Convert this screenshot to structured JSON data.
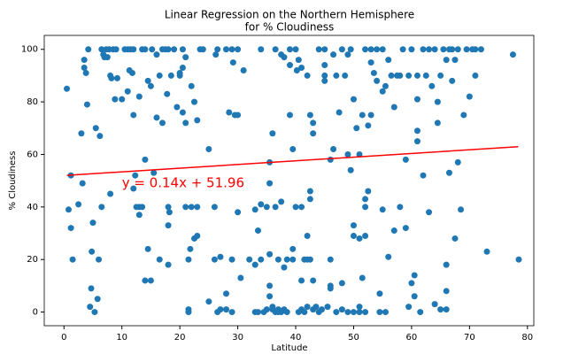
{
  "chart_data": {
    "type": "scatter",
    "title": [
      "Linear Regression on the Northern Hemisphere",
      "for % Cloudiness"
    ],
    "x_label": "Latitude",
    "y_label": "% Cloudiness",
    "color": "#1f77b4",
    "xlim": [
      -3.4,
      81.1
    ],
    "ylim": [
      -5.2,
      105.3
    ],
    "xticks": [
      0,
      10,
      20,
      30,
      40,
      50,
      60,
      70,
      80
    ],
    "yticks": [
      0,
      20,
      40,
      60,
      80,
      100
    ],
    "annotation": {
      "text": "y = 0.14x + 51.96",
      "x": 10,
      "y": 49,
      "color": "red"
    },
    "fit_line": {
      "x": [
        0.5,
        78.4
      ],
      "values": [
        52.03,
        62.94
      ],
      "color": "red"
    },
    "x": [
      0.5,
      0.8,
      1.2,
      1.5,
      1.2,
      2.5,
      3,
      3.2,
      3.5,
      3.8,
      3.5,
      4,
      4.2,
      4.5,
      4.7,
      4.8,
      5,
      5.3,
      5.5,
      5.8,
      6,
      6.2,
      6.5,
      6.5,
      6.8,
      7,
      7.3,
      7.5,
      7.8,
      8,
      8,
      8.2,
      8.5,
      8.8,
      9,
      9.2,
      10,
      10.5,
      11,
      11,
      11.3,
      11.5,
      11.8,
      12,
      12,
      12,
      12.3,
      12.5,
      13,
      13,
      13,
      13.5,
      13.5,
      14,
      14,
      14,
      14.5,
      14.5,
      15,
      15,
      15.2,
      15.5,
      16,
      16,
      16.5,
      16.5,
      17,
      17,
      17.5,
      17.8,
      18,
      18,
      18,
      18.2,
      18.5,
      18,
      19,
      19.5,
      20,
      20,
      20.5,
      20.5,
      20.5,
      21,
      21,
      21,
      21.5,
      21.5,
      21.8,
      21.5,
      22,
      22,
      22.5,
      22.5,
      23,
      23,
      23,
      23.5,
      24,
      25,
      25,
      26,
      26,
      26.2,
      26.5,
      26.5,
      27,
      27,
      28,
      28,
      28,
      28.5,
      29,
      29,
      29,
      29.2,
      29.5,
      30,
      30,
      30,
      30.5,
      31,
      32,
      33,
      33,
      33,
      33.5,
      33.5,
      34,
      34,
      34,
      34.5,
      35,
      35,
      35.5,
      35.5,
      35.5,
      35.5,
      35.5,
      36,
      36,
      36,
      36.5,
      36.5,
      36.5,
      37,
      37,
      37,
      37.5,
      37.5,
      37.5,
      38,
      38,
      38,
      38.5,
      38.5,
      39,
      39,
      39,
      39.5,
      39.5,
      39.5,
      40,
      40,
      40.2,
      40.5,
      40.5,
      41,
      41,
      41,
      41,
      41.5,
      41.5,
      42,
      42,
      42,
      42,
      42.5,
      42.5,
      42.5,
      42.5,
      43,
      43,
      43,
      43,
      43.5,
      44,
      44,
      44.5,
      45,
      45,
      45,
      45,
      45.5,
      46,
      46,
      46,
      46,
      46.5,
      46.5,
      47,
      47,
      47.5,
      48,
      48,
      48,
      48.5,
      49,
      49,
      49,
      49.5,
      49.5,
      50,
      50,
      50,
      50,
      50.5,
      51,
      51,
      51,
      51,
      51.5,
      51.5,
      52,
      52,
      52,
      52,
      52,
      52.5,
      52.5,
      53,
      53,
      53,
      53.5,
      54,
      54,
      54.5,
      54.5,
      55,
      55,
      55.5,
      55,
      55.5,
      56,
      56,
      56.5,
      57,
      57,
      57.5,
      58,
      58,
      58.5,
      59,
      59,
      59.5,
      59.5,
      60,
      60,
      60.5,
      60.5,
      61,
      61,
      61,
      61,
      61.5,
      62,
      62,
      62.5,
      63,
      63,
      63.5,
      64,
      64,
      64.5,
      64.5,
      65,
      65,
      65.5,
      66,
      66,
      66,
      66,
      66.5,
      66.5,
      67,
      67,
      67.5,
      67.5,
      68,
      68,
      68.5,
      69,
      69.5,
      70,
      70.5,
      71,
      71,
      72,
      73,
      77.5,
      78.5
    ],
    "values": [
      85,
      39,
      32,
      20,
      52,
      41,
      68,
      49,
      93,
      91,
      96,
      79,
      100,
      2,
      9,
      23,
      34,
      0,
      70,
      5,
      20,
      67,
      100,
      40,
      98,
      97,
      100,
      97,
      100,
      45,
      90,
      89,
      100,
      81,
      100,
      89,
      81,
      100,
      100,
      84,
      92,
      100,
      91,
      75,
      100,
      47,
      52,
      40,
      40,
      37,
      82,
      40,
      100,
      100,
      58,
      12,
      88,
      24,
      86,
      12,
      100,
      53,
      74,
      98,
      20,
      90,
      72,
      100,
      100,
      83,
      18,
      40,
      33,
      38,
      90,
      100,
      100,
      78,
      91,
      90,
      76,
      100,
      93,
      72,
      97,
      40,
      1,
      0,
      24,
      20,
      40,
      86,
      28,
      80,
      29,
      40,
      73,
      100,
      100,
      4,
      62,
      40,
      20,
      98,
      0,
      100,
      21,
      1,
      1,
      100,
      7,
      76,
      20,
      0,
      100,
      95,
      75,
      75,
      100,
      38,
      13,
      92,
      20,
      0,
      18,
      39,
      31,
      0,
      20,
      41,
      100,
      0,
      1,
      40,
      6,
      10,
      22,
      57,
      49,
      1,
      68,
      2,
      0,
      40,
      100,
      0,
      20,
      1,
      0,
      42,
      98,
      17,
      1,
      97,
      0,
      20,
      94,
      75,
      100,
      20,
      24,
      62,
      40,
      100,
      92,
      0,
      96,
      1,
      12,
      40,
      93,
      0,
      20,
      20,
      29,
      2,
      90,
      46,
      43,
      20,
      75,
      1,
      12,
      72,
      68,
      2,
      0,
      100,
      1,
      90,
      88,
      94,
      100,
      2,
      20,
      10,
      58,
      9,
      62,
      98,
      90,
      0,
      76,
      100,
      11,
      1,
      90,
      0,
      60,
      98,
      100,
      54,
      81,
      0,
      29,
      33,
      70,
      0,
      28,
      2,
      60,
      75,
      13,
      100,
      0,
      29,
      40,
      43,
      46,
      71,
      100,
      75,
      95,
      91,
      100,
      88,
      7,
      0,
      100,
      84,
      86,
      39,
      0,
      21,
      96,
      90,
      78,
      31,
      90,
      90,
      40,
      100,
      32,
      58,
      2,
      90,
      100,
      11,
      6,
      14,
      65,
      69,
      81,
      90,
      0,
      100,
      52,
      90,
      38,
      100,
      86,
      3,
      100,
      72,
      80,
      1,
      90,
      100,
      1,
      8,
      18,
      96,
      53,
      100,
      88,
      100,
      28,
      96,
      57,
      100,
      39,
      75,
      100,
      82,
      100,
      90,
      100,
      100,
      23,
      98,
      20
    ]
  }
}
